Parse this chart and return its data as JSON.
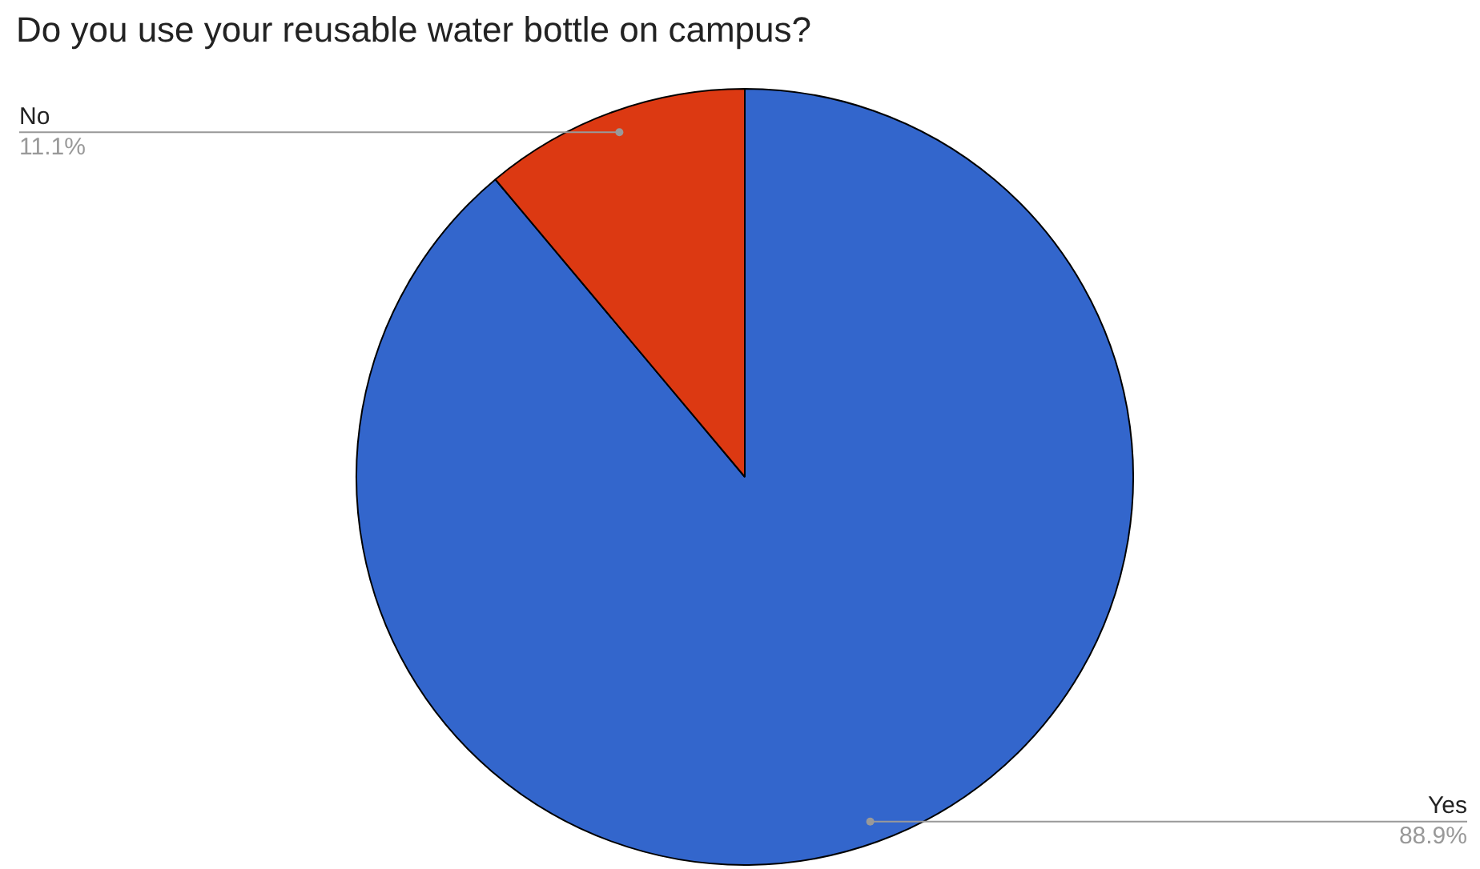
{
  "chart_data": {
    "type": "pie",
    "title": "Do you use your reusable water bottle on campus?",
    "categories": [
      "Yes",
      "No"
    ],
    "values": [
      88.9,
      11.1
    ],
    "colors": [
      "#3366cc",
      "#dc3912"
    ],
    "value_labels": [
      "88.9%",
      "11.1%"
    ],
    "legend": false
  }
}
